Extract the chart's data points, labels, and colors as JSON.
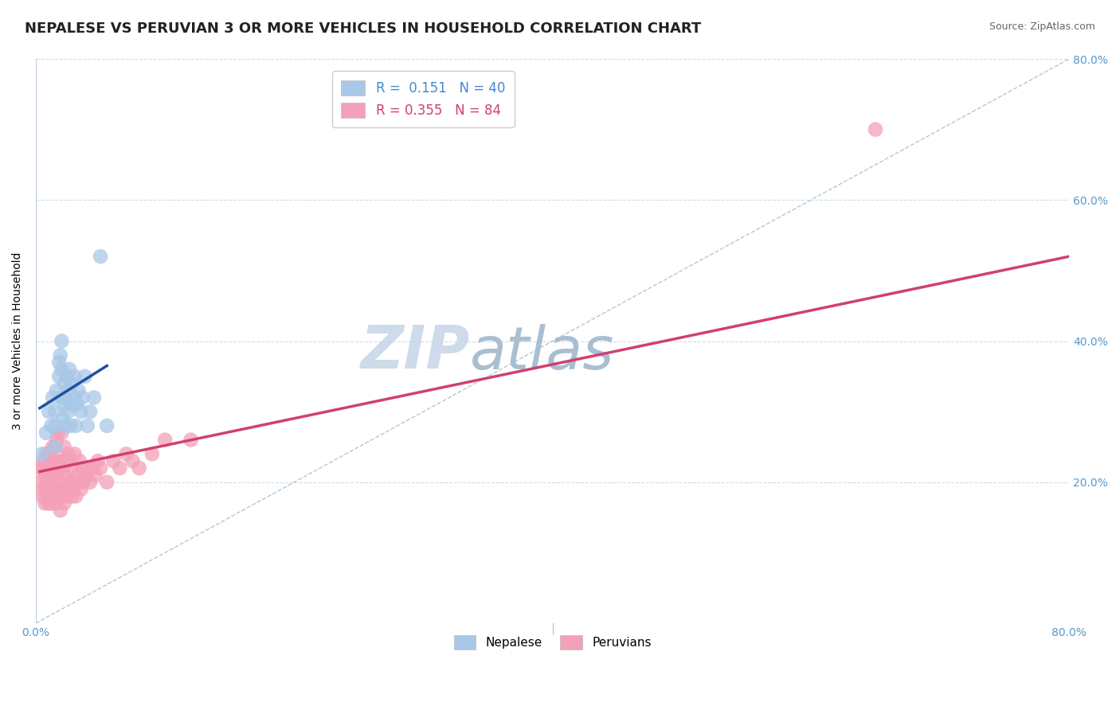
{
  "title": "NEPALESE VS PERUVIAN 3 OR MORE VEHICLES IN HOUSEHOLD CORRELATION CHART",
  "source_text": "Source: ZipAtlas.com",
  "ylabel": "3 or more Vehicles in Household",
  "xlim": [
    0.0,
    0.8
  ],
  "ylim": [
    0.0,
    0.8
  ],
  "nepalese_color": "#A8C8E8",
  "peruvian_color": "#F4A0B8",
  "nepalese_line_color": "#2050A0",
  "peruvian_line_color": "#D04070",
  "diagonal_color": "#B0C8D8",
  "background_color": "#FFFFFF",
  "grid_color": "#D0DDE8",
  "watermark": "ZIPatlas",
  "watermark_zip_color": "#C8D8E8",
  "watermark_atlas_color": "#A0B8CC",
  "title_fontsize": 13,
  "legend_fontsize": 11,
  "axis_label_fontsize": 10,
  "tick_fontsize": 10,
  "tick_color": "#5599CC",
  "nepalese_x": [
    0.005,
    0.008,
    0.01,
    0.012,
    0.013,
    0.015,
    0.015,
    0.015,
    0.016,
    0.018,
    0.018,
    0.019,
    0.02,
    0.02,
    0.02,
    0.021,
    0.022,
    0.022,
    0.023,
    0.023,
    0.024,
    0.025,
    0.025,
    0.026,
    0.027,
    0.028,
    0.028,
    0.03,
    0.03,
    0.031,
    0.032,
    0.033,
    0.035,
    0.036,
    0.038,
    0.04,
    0.042,
    0.045,
    0.05,
    0.055
  ],
  "nepalese_y": [
    0.24,
    0.27,
    0.3,
    0.28,
    0.32,
    0.25,
    0.28,
    0.3,
    0.33,
    0.35,
    0.37,
    0.38,
    0.32,
    0.36,
    0.4,
    0.29,
    0.31,
    0.34,
    0.28,
    0.32,
    0.35,
    0.3,
    0.33,
    0.36,
    0.28,
    0.31,
    0.34,
    0.32,
    0.35,
    0.28,
    0.31,
    0.33,
    0.3,
    0.32,
    0.35,
    0.28,
    0.3,
    0.32,
    0.52,
    0.28
  ],
  "peruvian_x": [
    0.003,
    0.004,
    0.005,
    0.005,
    0.006,
    0.006,
    0.007,
    0.007,
    0.008,
    0.008,
    0.008,
    0.009,
    0.009,
    0.01,
    0.01,
    0.01,
    0.011,
    0.011,
    0.012,
    0.012,
    0.012,
    0.013,
    0.013,
    0.013,
    0.014,
    0.014,
    0.015,
    0.015,
    0.015,
    0.016,
    0.016,
    0.016,
    0.017,
    0.017,
    0.017,
    0.018,
    0.018,
    0.019,
    0.019,
    0.02,
    0.02,
    0.02,
    0.021,
    0.021,
    0.022,
    0.022,
    0.022,
    0.023,
    0.023,
    0.024,
    0.025,
    0.025,
    0.026,
    0.026,
    0.027,
    0.028,
    0.028,
    0.029,
    0.03,
    0.03,
    0.031,
    0.032,
    0.033,
    0.034,
    0.035,
    0.036,
    0.037,
    0.038,
    0.04,
    0.042,
    0.044,
    0.046,
    0.048,
    0.05,
    0.055,
    0.06,
    0.065,
    0.07,
    0.075,
    0.08,
    0.09,
    0.1,
    0.12,
    0.65
  ],
  "peruvian_y": [
    0.22,
    0.2,
    0.18,
    0.22,
    0.19,
    0.23,
    0.17,
    0.21,
    0.18,
    0.2,
    0.24,
    0.19,
    0.22,
    0.17,
    0.2,
    0.24,
    0.18,
    0.22,
    0.17,
    0.19,
    0.23,
    0.18,
    0.21,
    0.25,
    0.19,
    0.23,
    0.17,
    0.21,
    0.25,
    0.18,
    0.22,
    0.26,
    0.19,
    0.23,
    0.27,
    0.18,
    0.22,
    0.16,
    0.2,
    0.19,
    0.23,
    0.27,
    0.18,
    0.22,
    0.17,
    0.21,
    0.25,
    0.19,
    0.23,
    0.18,
    0.2,
    0.24,
    0.19,
    0.23,
    0.2,
    0.18,
    0.22,
    0.19,
    0.2,
    0.24,
    0.18,
    0.21,
    0.2,
    0.23,
    0.19,
    0.22,
    0.2,
    0.21,
    0.22,
    0.2,
    0.22,
    0.21,
    0.23,
    0.22,
    0.2,
    0.23,
    0.22,
    0.24,
    0.23,
    0.22,
    0.24,
    0.26,
    0.26,
    0.7
  ],
  "nep_line_x0": 0.003,
  "nep_line_x1": 0.055,
  "nep_line_y0": 0.305,
  "nep_line_y1": 0.365,
  "per_line_x0": 0.003,
  "per_line_x1": 0.8,
  "per_line_y0": 0.215,
  "per_line_y1": 0.52
}
